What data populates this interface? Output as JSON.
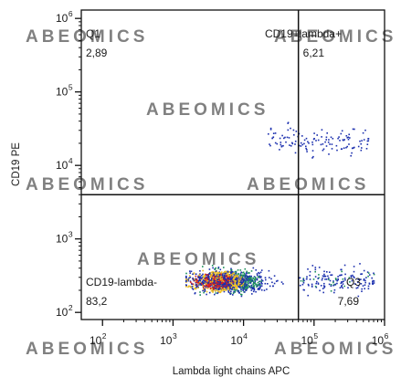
{
  "chart_data": {
    "type": "scatter",
    "scale": "log",
    "xlabel": "Lambda light chains  APC",
    "ylabel": "CD19 PE",
    "xlim": [
      50,
      1000000
    ],
    "ylim": [
      80,
      1300000
    ],
    "x_ticks": [
      {
        "value": 100,
        "base": "10",
        "exp": "2"
      },
      {
        "value": 1000,
        "base": "10",
        "exp": "3"
      },
      {
        "value": 10000,
        "base": "10",
        "exp": "4"
      },
      {
        "value": 100000,
        "base": "10",
        "exp": "5"
      },
      {
        "value": 1000000,
        "base": "10",
        "exp": "6"
      }
    ],
    "y_ticks": [
      {
        "value": 100,
        "base": "10",
        "exp": "2"
      },
      {
        "value": 1000,
        "base": "10",
        "exp": "3"
      },
      {
        "value": 10000,
        "base": "10",
        "exp": "4"
      },
      {
        "value": 100000,
        "base": "10",
        "exp": "5"
      },
      {
        "value": 1000000,
        "base": "10",
        "exp": "6"
      }
    ],
    "gate": {
      "x": 60000,
      "y": 4000
    },
    "quadrants": [
      {
        "name": "Q1",
        "value": "2,89",
        "position": "top-left"
      },
      {
        "name": "CD19+lambda+",
        "value": "6,21",
        "position": "top-right"
      },
      {
        "name": "CD19-lambda-",
        "value": "83,2",
        "position": "bottom-left"
      },
      {
        "name": "Q3",
        "value": "7,69",
        "position": "bottom-right"
      }
    ],
    "populations": [
      {
        "x_range": [
          1500,
          80000
        ],
        "y_range": [
          150,
          450
        ],
        "count": 1600,
        "density": "high",
        "peak_x": 3500,
        "peak_y": 270
      },
      {
        "x_range": [
          20000,
          600000
        ],
        "y_range": [
          12000,
          40000
        ],
        "count": 130,
        "density": "low"
      },
      {
        "x_range": [
          60000,
          700000
        ],
        "y_range": [
          150,
          500
        ],
        "count": 160,
        "density": "medium"
      }
    ],
    "colors": {
      "low": "#1b2fae",
      "medium": "#1c8f5a",
      "high": "#f0c020",
      "peak": "#d42020"
    }
  },
  "watermark": "ABEOMICS"
}
